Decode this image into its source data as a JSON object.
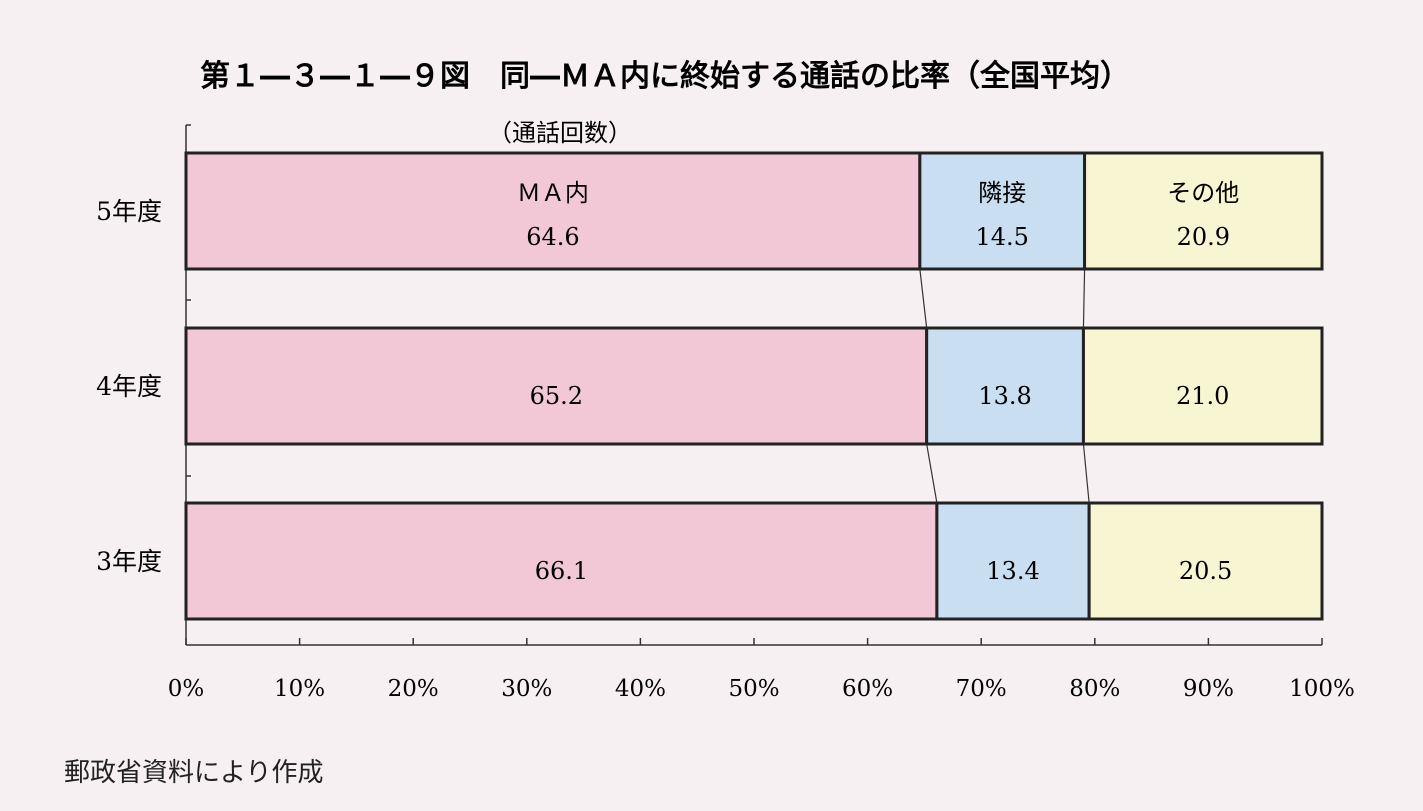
{
  "chart_data": {
    "type": "bar",
    "orientation": "horizontal",
    "stacked": true,
    "normalized": true,
    "title": "第１―３―１―９図　同―ＭＡ内に終始する通話の比率（全国平均）",
    "unit_note": "（通話回数）",
    "categories": [
      "5年度",
      "4年度",
      "3年度"
    ],
    "series": [
      {
        "name": "ＭＡ内",
        "color": "#f2c7d6",
        "values": [
          64.6,
          65.2,
          66.1
        ],
        "labels": [
          "64.6",
          "65.2",
          "66.1"
        ]
      },
      {
        "name": "隣接",
        "color": "#c9dff1",
        "values": [
          14.5,
          13.8,
          13.4
        ],
        "labels": [
          "14.5",
          "13.8",
          "13.4"
        ]
      },
      {
        "name": "その他",
        "color": "#f7f5d2",
        "values": [
          20.9,
          21.0,
          20.5
        ],
        "labels": [
          "20.9",
          "21.0",
          "20.5"
        ]
      }
    ],
    "xlim": [
      0,
      100
    ],
    "xticks": [
      "0%",
      "10%",
      "20%",
      "30%",
      "40%",
      "50%",
      "60%",
      "70%",
      "80%",
      "90%",
      "100%"
    ],
    "grid": false,
    "legend": "series names written inside first row segments",
    "connector_lines": true
  },
  "source_note": "郵政省資料により作成"
}
